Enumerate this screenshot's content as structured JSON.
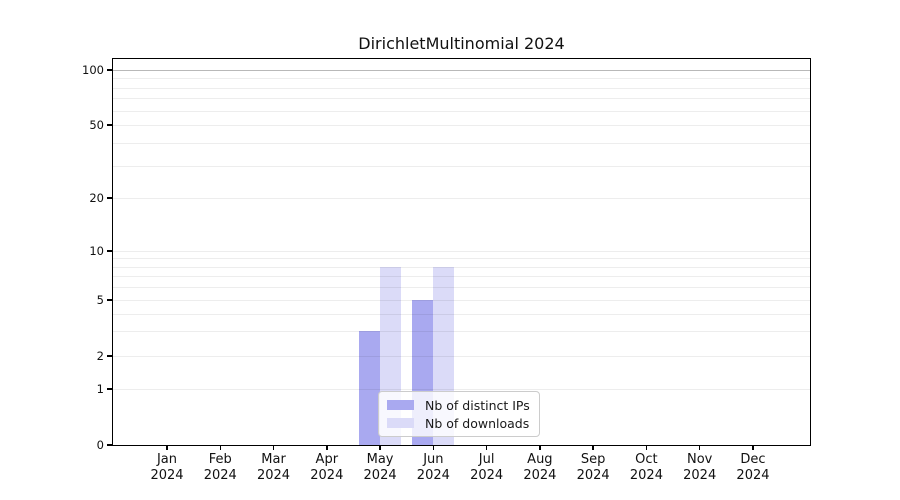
{
  "chart_data": {
    "type": "bar",
    "title": "DirichletMultinomial 2024",
    "categories": [
      "Jan",
      "Feb",
      "Mar",
      "Apr",
      "May",
      "Jun",
      "Jul",
      "Aug",
      "Sep",
      "Oct",
      "Nov",
      "Dec"
    ],
    "x_year_label": "2024",
    "series": [
      {
        "name": "Nb of distinct IPs",
        "color": "#a9a9f0",
        "values": [
          0,
          0,
          0,
          0,
          3,
          5,
          0,
          0,
          0,
          0,
          0,
          0
        ]
      },
      {
        "name": "Nb of downloads",
        "color": "#dbdbf8",
        "values": [
          0,
          0,
          0,
          0,
          8,
          8,
          0,
          0,
          0,
          0,
          0,
          0
        ]
      }
    ],
    "yaxis": {
      "scale": "symlog",
      "ticks": [
        0,
        1,
        2,
        5,
        10,
        20,
        50,
        100
      ],
      "tick_labels": [
        "0",
        "1",
        "2",
        "5",
        "10",
        "20",
        "50",
        "100"
      ],
      "minor_ticks": [
        3,
        4,
        6,
        7,
        8,
        9,
        30,
        40,
        60,
        70,
        80,
        90
      ],
      "range": [
        0,
        110
      ]
    },
    "legend": {
      "position": "lower center"
    },
    "grid": true,
    "colors": {
      "spine": "#000000",
      "grid_minor": "rgba(0,0,0,0.07)",
      "grid_top": "rgba(0,0,0,0.28)",
      "text": "#111111"
    }
  }
}
